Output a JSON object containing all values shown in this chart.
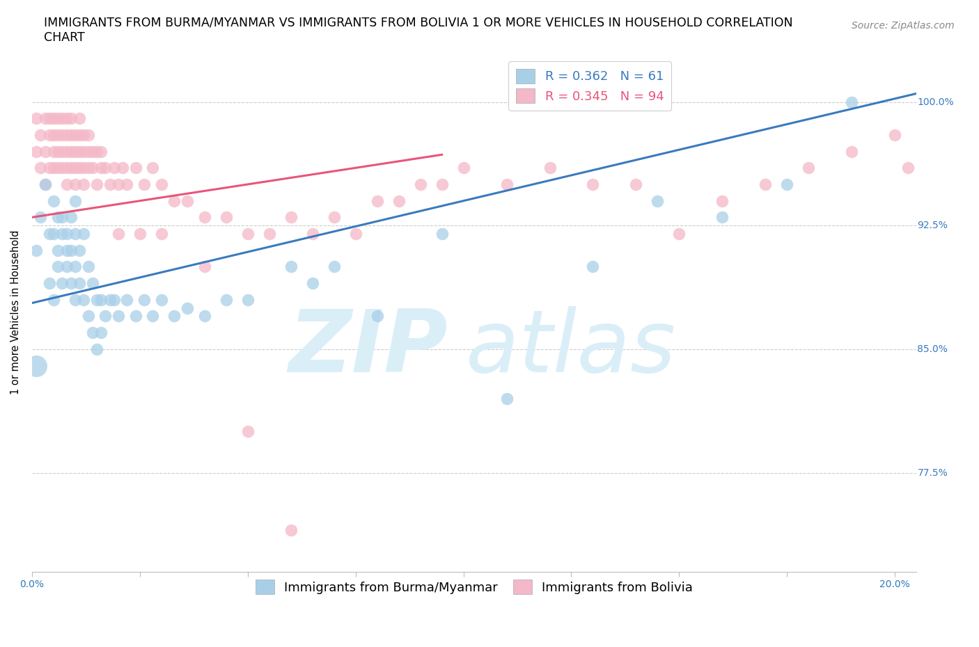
{
  "title_line1": "IMMIGRANTS FROM BURMA/MYANMAR VS IMMIGRANTS FROM BOLIVIA 1 OR MORE VEHICLES IN HOUSEHOLD CORRELATION",
  "title_line2": "CHART",
  "source_text": "Source: ZipAtlas.com",
  "ylabel": "1 or more Vehicles in Household",
  "xlim": [
    0.0,
    0.205
  ],
  "ylim": [
    0.715,
    1.03
  ],
  "xticks": [
    0.0,
    0.025,
    0.05,
    0.075,
    0.1,
    0.125,
    0.15,
    0.175,
    0.2
  ],
  "xticklabels_show": {
    "0.0": "0.0%",
    "0.20": "20.0%"
  },
  "ytick_positions": [
    0.775,
    0.85,
    0.925,
    1.0
  ],
  "ytick_labels": [
    "77.5%",
    "85.0%",
    "92.5%",
    "100.0%"
  ],
  "legend_R_blue": "0.362",
  "legend_N_blue": "61",
  "legend_R_pink": "0.345",
  "legend_N_pink": "94",
  "blue_color": "#a8cfe8",
  "pink_color": "#f4b8c8",
  "blue_line_color": "#3a7abf",
  "pink_line_color": "#e8557a",
  "watermark_zip": "ZIP",
  "watermark_atlas": "atlas",
  "watermark_color": "#daeef8",
  "blue_scatter_x": [
    0.001,
    0.002,
    0.003,
    0.004,
    0.004,
    0.005,
    0.005,
    0.005,
    0.006,
    0.006,
    0.006,
    0.007,
    0.007,
    0.007,
    0.008,
    0.008,
    0.008,
    0.009,
    0.009,
    0.009,
    0.01,
    0.01,
    0.01,
    0.01,
    0.011,
    0.011,
    0.012,
    0.012,
    0.013,
    0.013,
    0.014,
    0.014,
    0.015,
    0.015,
    0.016,
    0.016,
    0.017,
    0.018,
    0.019,
    0.02,
    0.022,
    0.024,
    0.026,
    0.028,
    0.03,
    0.033,
    0.036,
    0.04,
    0.045,
    0.05,
    0.06,
    0.065,
    0.07,
    0.08,
    0.095,
    0.11,
    0.13,
    0.145,
    0.16,
    0.175,
    0.19
  ],
  "blue_scatter_y": [
    0.91,
    0.93,
    0.95,
    0.92,
    0.89,
    0.88,
    0.92,
    0.94,
    0.9,
    0.93,
    0.91,
    0.89,
    0.92,
    0.93,
    0.9,
    0.92,
    0.91,
    0.89,
    0.91,
    0.93,
    0.88,
    0.9,
    0.92,
    0.94,
    0.89,
    0.91,
    0.88,
    0.92,
    0.87,
    0.9,
    0.86,
    0.89,
    0.85,
    0.88,
    0.86,
    0.88,
    0.87,
    0.88,
    0.88,
    0.87,
    0.88,
    0.87,
    0.88,
    0.87,
    0.88,
    0.87,
    0.875,
    0.87,
    0.88,
    0.88,
    0.9,
    0.89,
    0.9,
    0.87,
    0.92,
    0.82,
    0.9,
    0.94,
    0.93,
    0.95,
    1.0
  ],
  "pink_scatter_x": [
    0.001,
    0.001,
    0.002,
    0.002,
    0.003,
    0.003,
    0.003,
    0.004,
    0.004,
    0.004,
    0.005,
    0.005,
    0.005,
    0.005,
    0.006,
    0.006,
    0.006,
    0.006,
    0.007,
    0.007,
    0.007,
    0.007,
    0.008,
    0.008,
    0.008,
    0.008,
    0.008,
    0.009,
    0.009,
    0.009,
    0.009,
    0.01,
    0.01,
    0.01,
    0.01,
    0.011,
    0.011,
    0.011,
    0.011,
    0.012,
    0.012,
    0.012,
    0.012,
    0.013,
    0.013,
    0.013,
    0.014,
    0.014,
    0.015,
    0.015,
    0.016,
    0.016,
    0.017,
    0.018,
    0.019,
    0.02,
    0.021,
    0.022,
    0.024,
    0.026,
    0.028,
    0.03,
    0.033,
    0.036,
    0.04,
    0.045,
    0.05,
    0.055,
    0.06,
    0.065,
    0.07,
    0.075,
    0.08,
    0.085,
    0.09,
    0.095,
    0.1,
    0.11,
    0.12,
    0.13,
    0.14,
    0.15,
    0.16,
    0.17,
    0.18,
    0.19,
    0.2,
    0.203,
    0.02,
    0.025,
    0.03,
    0.04,
    0.05,
    0.06
  ],
  "pink_scatter_y": [
    0.97,
    0.99,
    0.98,
    0.96,
    0.97,
    0.99,
    0.95,
    0.98,
    0.96,
    0.99,
    0.97,
    0.98,
    0.96,
    0.99,
    0.97,
    0.98,
    0.96,
    0.99,
    0.97,
    0.98,
    0.96,
    0.99,
    0.98,
    0.97,
    0.96,
    0.99,
    0.95,
    0.97,
    0.98,
    0.96,
    0.99,
    0.97,
    0.98,
    0.96,
    0.95,
    0.97,
    0.98,
    0.96,
    0.99,
    0.97,
    0.98,
    0.95,
    0.96,
    0.97,
    0.96,
    0.98,
    0.97,
    0.96,
    0.97,
    0.95,
    0.96,
    0.97,
    0.96,
    0.95,
    0.96,
    0.95,
    0.96,
    0.95,
    0.96,
    0.95,
    0.96,
    0.95,
    0.94,
    0.94,
    0.93,
    0.93,
    0.92,
    0.92,
    0.93,
    0.92,
    0.93,
    0.92,
    0.94,
    0.94,
    0.95,
    0.95,
    0.96,
    0.95,
    0.96,
    0.95,
    0.95,
    0.92,
    0.94,
    0.95,
    0.96,
    0.97,
    0.98,
    0.96,
    0.92,
    0.92,
    0.92,
    0.9,
    0.8,
    0.74
  ],
  "background_color": "#ffffff",
  "grid_color": "#cccccc",
  "title_fontsize": 12.5,
  "axis_label_fontsize": 10.5,
  "tick_fontsize": 10,
  "legend_fontsize": 13,
  "source_fontsize": 10,
  "blue_line_intercept": 0.878,
  "blue_line_slope": 0.62,
  "pink_line_intercept": 0.93,
  "pink_line_slope": 0.4
}
